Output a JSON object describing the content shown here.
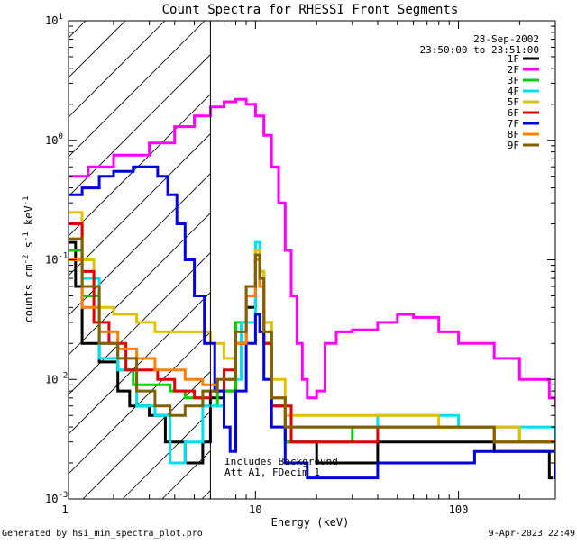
{
  "chart_data": {
    "type": "line",
    "title": "Count Spectra for RHESSI Front Segments",
    "xlabel": "Energy (keV)",
    "ylabel": "counts cm^-2 s^-1 keV^-1",
    "xscale": "log",
    "yscale": "log",
    "xlim": [
      1.2,
      300
    ],
    "ylim": [
      0.001,
      10
    ],
    "x_ticks": [
      {
        "value": 1,
        "label": "1"
      },
      {
        "value": 10,
        "label": "10"
      },
      {
        "value": 100,
        "label": "100"
      }
    ],
    "y_ticks": [
      {
        "value": 0.001,
        "label": "10-3",
        "base": "10",
        "exp": "-3"
      },
      {
        "value": 0.01,
        "label": "10-2",
        "base": "10",
        "exp": "-2"
      },
      {
        "value": 0.1,
        "label": "10-1",
        "base": "10",
        "exp": "-1"
      },
      {
        "value": 1,
        "label": "100",
        "base": "10",
        "exp": "0"
      },
      {
        "value": 10,
        "label": "101",
        "base": "10",
        "exp": "1"
      }
    ],
    "date": "28-Sep-2002",
    "time_range": "23:50:00 to 23:51:00",
    "hatch_xmax": 6,
    "annotation": [
      "Includes Background",
      "Att A1, FDecim 1"
    ],
    "footer_left": "Generated by hsi_min_spectra_plot.pro",
    "footer_right": "9-Apr-2023 22:49",
    "series": [
      {
        "name": "1F",
        "color": "#000000",
        "points": [
          [
            1.2,
            0.14
          ],
          [
            1.3,
            0.06
          ],
          [
            1.4,
            0.02
          ],
          [
            1.7,
            0.014
          ],
          [
            2.1,
            0.008
          ],
          [
            2.4,
            0.006
          ],
          [
            3,
            0.005
          ],
          [
            3.6,
            0.003
          ],
          [
            4.5,
            0.002
          ],
          [
            5.5,
            0.003
          ],
          [
            6,
            0.007
          ],
          [
            7,
            0.008
          ],
          [
            8,
            0.02
          ],
          [
            9,
            0.04
          ],
          [
            10,
            0.12
          ],
          [
            10.5,
            0.07
          ],
          [
            11,
            0.02
          ],
          [
            12,
            0.006
          ],
          [
            14,
            0.003
          ],
          [
            20,
            0.002
          ],
          [
            40,
            0.003
          ],
          [
            80,
            0.003
          ],
          [
            150,
            0.0025
          ],
          [
            280,
            0.0015
          ]
        ]
      },
      {
        "name": "2F",
        "color": "#ff00ff",
        "points": [
          [
            1.2,
            0.5
          ],
          [
            1.5,
            0.6
          ],
          [
            2,
            0.75
          ],
          [
            3,
            0.95
          ],
          [
            4,
            1.3
          ],
          [
            5,
            1.6
          ],
          [
            6,
            1.9
          ],
          [
            7,
            2.1
          ],
          [
            8,
            2.2
          ],
          [
            9,
            2
          ],
          [
            10,
            1.6
          ],
          [
            11,
            1.1
          ],
          [
            12,
            0.6
          ],
          [
            13,
            0.3
          ],
          [
            14,
            0.12
          ],
          [
            15,
            0.05
          ],
          [
            16,
            0.02
          ],
          [
            17,
            0.01
          ],
          [
            18,
            0.007
          ],
          [
            20,
            0.008
          ],
          [
            22,
            0.02
          ],
          [
            25,
            0.025
          ],
          [
            30,
            0.026
          ],
          [
            40,
            0.03
          ],
          [
            50,
            0.035
          ],
          [
            60,
            0.033
          ],
          [
            80,
            0.025
          ],
          [
            100,
            0.02
          ],
          [
            150,
            0.015
          ],
          [
            200,
            0.01
          ],
          [
            280,
            0.007
          ],
          [
            300,
            0.006
          ]
        ]
      },
      {
        "name": "3F",
        "color": "#00d000",
        "points": [
          [
            1.2,
            0.12
          ],
          [
            1.4,
            0.05
          ],
          [
            1.7,
            0.02
          ],
          [
            2.1,
            0.012
          ],
          [
            2.5,
            0.009
          ],
          [
            3,
            0.009
          ],
          [
            3.8,
            0.008
          ],
          [
            4.5,
            0.007
          ],
          [
            5.5,
            0.006
          ],
          [
            6.5,
            0.008
          ],
          [
            8,
            0.03
          ],
          [
            9,
            0.06
          ],
          [
            10,
            0.11
          ],
          [
            10.5,
            0.08
          ],
          [
            11,
            0.03
          ],
          [
            12,
            0.006
          ],
          [
            14,
            0.003
          ],
          [
            30,
            0.004
          ],
          [
            80,
            0.004
          ],
          [
            200,
            0.003
          ],
          [
            300,
            0.002
          ]
        ]
      },
      {
        "name": "4F",
        "color": "#00e0f0",
        "points": [
          [
            1.2,
            0.2
          ],
          [
            1.4,
            0.07
          ],
          [
            1.7,
            0.015
          ],
          [
            2.1,
            0.012
          ],
          [
            2.6,
            0.006
          ],
          [
            3.2,
            0.005
          ],
          [
            3.8,
            0.002
          ],
          [
            4.5,
            0.003
          ],
          [
            5.5,
            0.006
          ],
          [
            7,
            0.01
          ],
          [
            8.5,
            0.03
          ],
          [
            10,
            0.14
          ],
          [
            10.5,
            0.08
          ],
          [
            11,
            0.025
          ],
          [
            12,
            0.006
          ],
          [
            14,
            0.004
          ],
          [
            40,
            0.005
          ],
          [
            100,
            0.004
          ],
          [
            300,
            0.002
          ]
        ]
      },
      {
        "name": "5F",
        "color": "#e0c000",
        "points": [
          [
            1.2,
            0.25
          ],
          [
            1.4,
            0.1
          ],
          [
            1.6,
            0.04
          ],
          [
            2,
            0.035
          ],
          [
            2.6,
            0.03
          ],
          [
            3.2,
            0.025
          ],
          [
            4,
            0.025
          ],
          [
            5,
            0.025
          ],
          [
            6,
            0.02
          ],
          [
            7,
            0.015
          ],
          [
            8,
            0.02
          ],
          [
            9,
            0.05
          ],
          [
            10,
            0.12
          ],
          [
            10.5,
            0.08
          ],
          [
            11,
            0.03
          ],
          [
            12,
            0.01
          ],
          [
            14,
            0.005
          ],
          [
            30,
            0.005
          ],
          [
            80,
            0.004
          ],
          [
            200,
            0.003
          ],
          [
            300,
            0.002
          ]
        ]
      },
      {
        "name": "6F",
        "color": "#e00000",
        "points": [
          [
            1.2,
            0.2
          ],
          [
            1.4,
            0.08
          ],
          [
            1.6,
            0.03
          ],
          [
            1.9,
            0.02
          ],
          [
            2.3,
            0.012
          ],
          [
            2.7,
            0.012
          ],
          [
            3.3,
            0.01
          ],
          [
            4,
            0.008
          ],
          [
            5,
            0.007
          ],
          [
            6,
            0.008
          ],
          [
            7,
            0.012
          ],
          [
            8,
            0.02
          ],
          [
            9,
            0.05
          ],
          [
            10,
            0.1
          ],
          [
            10.5,
            0.06
          ],
          [
            11,
            0.02
          ],
          [
            12,
            0.006
          ],
          [
            15,
            0.003
          ],
          [
            40,
            0.004
          ],
          [
            150,
            0.003
          ],
          [
            300,
            0.002
          ]
        ]
      },
      {
        "name": "7F",
        "color": "#0000e0",
        "points": [
          [
            1.2,
            0.35
          ],
          [
            1.4,
            0.4
          ],
          [
            1.7,
            0.5
          ],
          [
            2,
            0.55
          ],
          [
            2.5,
            0.6
          ],
          [
            3,
            0.6
          ],
          [
            3.3,
            0.5
          ],
          [
            3.7,
            0.35
          ],
          [
            4.1,
            0.2
          ],
          [
            4.5,
            0.1
          ],
          [
            5,
            0.05
          ],
          [
            5.6,
            0.02
          ],
          [
            6.3,
            0.008
          ],
          [
            7,
            0.004
          ],
          [
            7.5,
            0.0025
          ],
          [
            8,
            0.008
          ],
          [
            9,
            0.02
          ],
          [
            10,
            0.035
          ],
          [
            10.5,
            0.025
          ],
          [
            11,
            0.01
          ],
          [
            12,
            0.004
          ],
          [
            14,
            0.002
          ],
          [
            18,
            0.0015
          ],
          [
            40,
            0.002
          ],
          [
            120,
            0.0025
          ],
          [
            300,
            0.0015
          ]
        ]
      },
      {
        "name": "8F",
        "color": "#ff8000",
        "points": [
          [
            1.2,
            0.1
          ],
          [
            1.4,
            0.04
          ],
          [
            1.7,
            0.025
          ],
          [
            2.1,
            0.018
          ],
          [
            2.6,
            0.015
          ],
          [
            3.2,
            0.012
          ],
          [
            3.8,
            0.012
          ],
          [
            4.5,
            0.01
          ],
          [
            5.5,
            0.009
          ],
          [
            6.5,
            0.01
          ],
          [
            8,
            0.02
          ],
          [
            9,
            0.05
          ],
          [
            10,
            0.1
          ],
          [
            10.5,
            0.06
          ],
          [
            11,
            0.025
          ],
          [
            12,
            0.007
          ],
          [
            14,
            0.004
          ],
          [
            40,
            0.004
          ],
          [
            150,
            0.003
          ],
          [
            300,
            0.002
          ]
        ]
      },
      {
        "name": "9F",
        "color": "#806000",
        "points": [
          [
            1.2,
            0.15
          ],
          [
            1.4,
            0.06
          ],
          [
            1.7,
            0.02
          ],
          [
            2.1,
            0.015
          ],
          [
            2.6,
            0.008
          ],
          [
            3.2,
            0.006
          ],
          [
            3.8,
            0.005
          ],
          [
            4.5,
            0.006
          ],
          [
            5.5,
            0.008
          ],
          [
            6.5,
            0.01
          ],
          [
            8,
            0.025
          ],
          [
            9,
            0.06
          ],
          [
            10,
            0.11
          ],
          [
            10.5,
            0.07
          ],
          [
            11,
            0.025
          ],
          [
            12,
            0.007
          ],
          [
            14,
            0.004
          ],
          [
            40,
            0.004
          ],
          [
            150,
            0.003
          ],
          [
            300,
            0.002
          ]
        ]
      }
    ]
  }
}
